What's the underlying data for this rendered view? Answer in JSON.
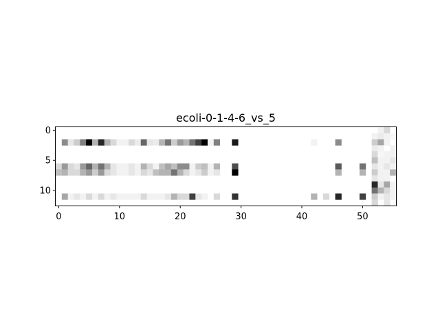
{
  "chart_data": {
    "type": "heatmap",
    "title": "ecoli-0-1-4-6_vs_5",
    "xlabel": "",
    "ylabel": "",
    "colormap": "greys",
    "n_rows": 13,
    "n_cols": 56,
    "xlim": [
      -0.5,
      55.5
    ],
    "ylim": [
      12.5,
      -0.5
    ],
    "x_ticks": [
      0,
      10,
      20,
      30,
      40,
      50
    ],
    "y_ticks": [
      0,
      5,
      10
    ],
    "grid": false,
    "values": [
      [
        0,
        0,
        0,
        0,
        0,
        0,
        0,
        0,
        0,
        0,
        0,
        0,
        0,
        0,
        0,
        0,
        0,
        0,
        0,
        0,
        0,
        0,
        0,
        0,
        0,
        0,
        0,
        0,
        0,
        0,
        0,
        0,
        0,
        0,
        0,
        0,
        0,
        0,
        0,
        0,
        0,
        0,
        0,
        0,
        0,
        0,
        0,
        0,
        0,
        0,
        0,
        0,
        0,
        0.05,
        0.15,
        0
      ],
      [
        0,
        0,
        0,
        0,
        0,
        0,
        0,
        0,
        0,
        0,
        0,
        0,
        0,
        0,
        0,
        0,
        0,
        0,
        0,
        0,
        0,
        0,
        0,
        0,
        0,
        0,
        0,
        0,
        0,
        0,
        0,
        0,
        0,
        0,
        0,
        0,
        0,
        0,
        0,
        0,
        0,
        0,
        0,
        0,
        0,
        0,
        0,
        0,
        0,
        0,
        0,
        0,
        0.05,
        0.08,
        0.05,
        0.03
      ],
      [
        0,
        0.45,
        0.1,
        0.2,
        0.5,
        1,
        0.3,
        0.85,
        0.3,
        0.15,
        0.05,
        0.05,
        0.15,
        0.08,
        0.6,
        0.1,
        0.08,
        0.3,
        0.55,
        0.2,
        0.4,
        0.3,
        0.55,
        0.75,
        1,
        0.05,
        0.5,
        0,
        0,
        0.9,
        0,
        0,
        0,
        0,
        0,
        0,
        0,
        0,
        0,
        0,
        0,
        0,
        0.05,
        0,
        0,
        0,
        0.45,
        0,
        0,
        0,
        0,
        0,
        0.2,
        0.35,
        0.05,
        0
      ],
      [
        0,
        0,
        0,
        0,
        0,
        0,
        0,
        0,
        0,
        0,
        0,
        0,
        0,
        0,
        0,
        0,
        0,
        0,
        0,
        0,
        0,
        0,
        0,
        0,
        0,
        0,
        0,
        0,
        0,
        0,
        0,
        0,
        0,
        0,
        0,
        0,
        0,
        0,
        0,
        0,
        0,
        0,
        0,
        0,
        0,
        0,
        0,
        0,
        0,
        0,
        0,
        0,
        0.08,
        0.05,
        0,
        0.05
      ],
      [
        0,
        0,
        0,
        0,
        0,
        0,
        0,
        0,
        0,
        0,
        0,
        0,
        0,
        0,
        0,
        0,
        0,
        0,
        0,
        0,
        0,
        0,
        0,
        0,
        0,
        0,
        0,
        0,
        0,
        0,
        0,
        0,
        0,
        0,
        0,
        0,
        0,
        0,
        0,
        0,
        0,
        0,
        0,
        0,
        0,
        0,
        0,
        0,
        0,
        0,
        0,
        0,
        0.15,
        0.03,
        0.05,
        0.05
      ],
      [
        0,
        0,
        0,
        0,
        0,
        0,
        0,
        0,
        0,
        0,
        0,
        0,
        0,
        0,
        0,
        0,
        0,
        0,
        0,
        0,
        0,
        0,
        0,
        0,
        0,
        0,
        0,
        0,
        0,
        0,
        0,
        0,
        0,
        0,
        0,
        0,
        0,
        0,
        0,
        0,
        0,
        0,
        0,
        0,
        0,
        0,
        0,
        0,
        0,
        0,
        0,
        0,
        0.25,
        0.05,
        0.05,
        0.1
      ],
      [
        0.15,
        0.4,
        0.15,
        0.1,
        0.4,
        0.6,
        0.3,
        0.55,
        0.3,
        0.1,
        0.05,
        0.05,
        0.1,
        0.05,
        0.3,
        0.15,
        0.05,
        0.25,
        0.35,
        0.25,
        0.45,
        0.45,
        0.05,
        0.2,
        0.25,
        0.05,
        0.3,
        0,
        0,
        0.7,
        0,
        0,
        0,
        0,
        0,
        0,
        0,
        0,
        0,
        0,
        0,
        0,
        0,
        0,
        0,
        0,
        0.65,
        0,
        0,
        0,
        0.55,
        0,
        0.1,
        0.05,
        0.1,
        0.05
      ],
      [
        0.25,
        0.3,
        0.15,
        0.15,
        0.3,
        0.4,
        0.2,
        0.4,
        0.15,
        0.1,
        0.05,
        0.05,
        0.1,
        0.05,
        0.15,
        0.1,
        0.25,
        0.3,
        0.3,
        0.55,
        0.3,
        0.15,
        0.05,
        0.1,
        0.2,
        0.05,
        0.1,
        0,
        0,
        1,
        0,
        0,
        0,
        0,
        0,
        0,
        0,
        0,
        0,
        0,
        0,
        0,
        0,
        0,
        0,
        0,
        0.3,
        0,
        0,
        0,
        0.3,
        0,
        0.2,
        0.05,
        0.05,
        0.3
      ],
      [
        0,
        0,
        0,
        0,
        0,
        0,
        0,
        0,
        0,
        0,
        0,
        0,
        0,
        0,
        0,
        0,
        0,
        0,
        0,
        0,
        0,
        0,
        0,
        0,
        0,
        0,
        0,
        0,
        0,
        0,
        0,
        0,
        0,
        0,
        0,
        0,
        0,
        0,
        0,
        0,
        0,
        0,
        0,
        0,
        0,
        0,
        0,
        0,
        0,
        0,
        0,
        0,
        0.1,
        0.05,
        0.05,
        0
      ],
      [
        0,
        0,
        0,
        0,
        0,
        0,
        0,
        0,
        0,
        0,
        0,
        0,
        0,
        0,
        0,
        0,
        0,
        0,
        0,
        0,
        0,
        0,
        0,
        0,
        0,
        0,
        0,
        0,
        0,
        0,
        0,
        0,
        0,
        0,
        0,
        0,
        0,
        0,
        0,
        0,
        0,
        0,
        0,
        0,
        0,
        0,
        0,
        0,
        0,
        0,
        0,
        0,
        0.85,
        0.1,
        0.35,
        0.05
      ],
      [
        0,
        0,
        0,
        0,
        0,
        0,
        0,
        0,
        0,
        0,
        0,
        0,
        0,
        0,
        0,
        0,
        0,
        0,
        0,
        0,
        0,
        0,
        0,
        0,
        0,
        0,
        0,
        0,
        0,
        0,
        0,
        0,
        0,
        0,
        0,
        0,
        0,
        0,
        0,
        0,
        0,
        0,
        0,
        0,
        0,
        0,
        0,
        0,
        0,
        0,
        0,
        0,
        0.55,
        0.3,
        0.15,
        0.05
      ],
      [
        0,
        0.35,
        0.05,
        0.1,
        0.05,
        0.15,
        0.05,
        0.15,
        0.05,
        0.1,
        0.05,
        0.05,
        0.05,
        0.05,
        0.15,
        0.05,
        0.05,
        0.05,
        0.1,
        0.3,
        0.15,
        0.15,
        0.75,
        0.1,
        0.05,
        0,
        0.15,
        0,
        0,
        0.8,
        0,
        0,
        0,
        0,
        0,
        0,
        0,
        0,
        0,
        0,
        0,
        0,
        0.3,
        0,
        0.15,
        0,
        0.85,
        0,
        0,
        0,
        0.75,
        0,
        0.2,
        0.05,
        0.1,
        0.05
      ],
      [
        0,
        0,
        0,
        0,
        0,
        0,
        0,
        0,
        0,
        0,
        0,
        0,
        0,
        0,
        0,
        0,
        0,
        0,
        0,
        0,
        0,
        0,
        0,
        0,
        0,
        0,
        0,
        0,
        0,
        0,
        0,
        0,
        0,
        0,
        0,
        0,
        0,
        0,
        0,
        0,
        0,
        0,
        0,
        0,
        0,
        0,
        0,
        0,
        0,
        0,
        0,
        0,
        0.15,
        0,
        0.1,
        0
      ]
    ]
  }
}
